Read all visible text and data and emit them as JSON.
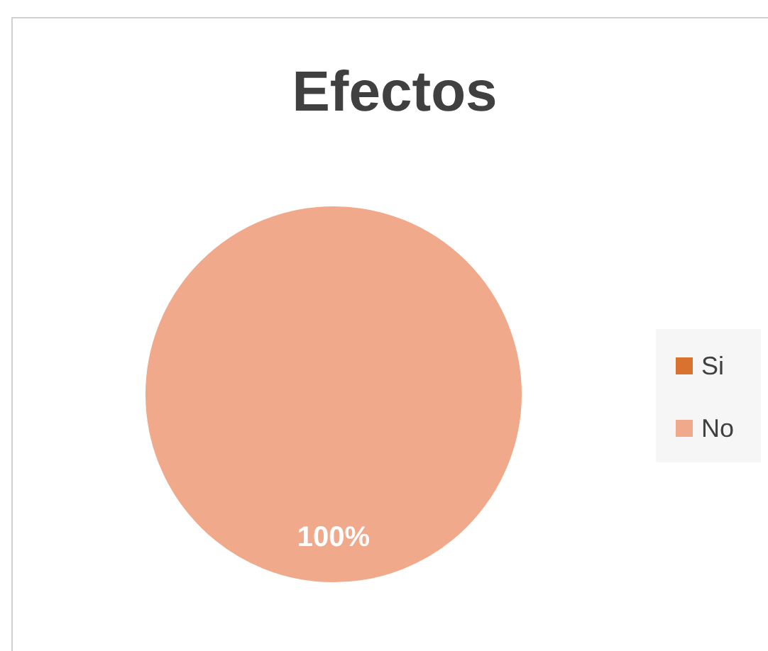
{
  "chart_data": {
    "type": "pie",
    "title": "Efectos",
    "categories": [
      "Si",
      "No"
    ],
    "values": [
      0,
      100
    ],
    "colors": [
      "#d9722f",
      "#f0a98a"
    ],
    "value_labels": [
      null,
      "100%"
    ],
    "legend": "right"
  }
}
